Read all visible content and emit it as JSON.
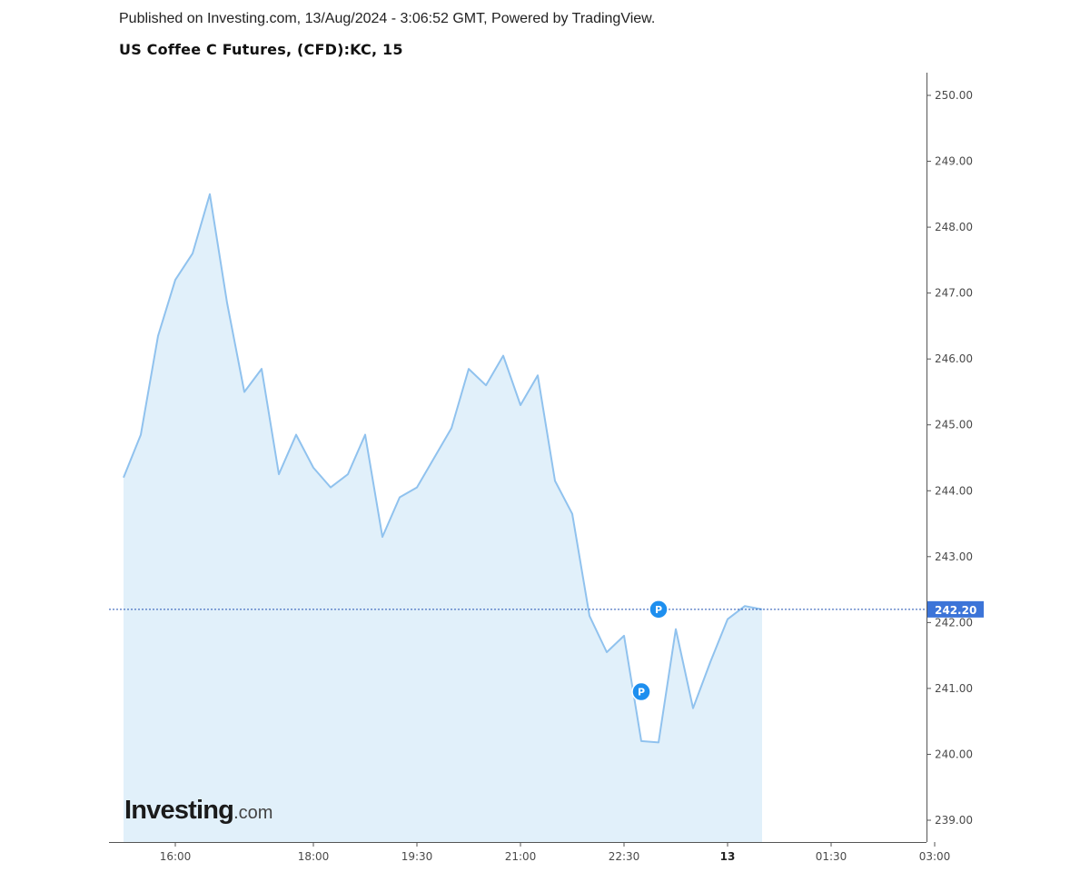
{
  "header": {
    "published": "Published on Investing.com, 13/Aug/2024 - 3:06:52 GMT, Powered by TradingView.",
    "title": "US Coffee C Futures, (CFD):KC, 15"
  },
  "logo": {
    "brand": "Investing",
    "domain": ".com"
  },
  "chart_data": {
    "type": "area",
    "title": "US Coffee C Futures, (CFD):KC, 15",
    "xlabel": "",
    "ylabel": "",
    "ylim": [
      238.7,
      250.35
    ],
    "y_ticks": [
      "250.00",
      "249.00",
      "248.00",
      "247.00",
      "246.00",
      "245.00",
      "244.00",
      "243.00",
      "242.00",
      "241.00",
      "240.00",
      "239.00"
    ],
    "x_tick_labels": [
      {
        "label": "16:00",
        "time": "12 Aug 16:00",
        "bold": false
      },
      {
        "label": "18:00",
        "time": "12 Aug 18:00",
        "bold": false
      },
      {
        "label": "19:30",
        "time": "12 Aug 19:30",
        "bold": false
      },
      {
        "label": "21:00",
        "time": "12 Aug 21:00",
        "bold": false
      },
      {
        "label": "22:30",
        "time": "12 Aug 22:30",
        "bold": false
      },
      {
        "label": "13",
        "time": "13 Aug 00:00",
        "bold": true
      },
      {
        "label": "01:30",
        "time": "13 Aug 01:30",
        "bold": false
      },
      {
        "label": "03:00",
        "time": "13 Aug 03:00",
        "bold": false
      }
    ],
    "series": [
      {
        "times": [
          "12 Aug 15:15",
          "12 Aug 15:30",
          "12 Aug 15:45",
          "12 Aug 16:00",
          "12 Aug 16:15",
          "12 Aug 16:30",
          "12 Aug 16:45",
          "12 Aug 17:00",
          "12 Aug 17:15",
          "12 Aug 17:30",
          "12 Aug 17:45",
          "12 Aug 18:00",
          "12 Aug 18:15",
          "12 Aug 18:30",
          "12 Aug 18:45",
          "12 Aug 19:00",
          "12 Aug 19:15",
          "12 Aug 19:30",
          "12 Aug 19:45",
          "12 Aug 20:00",
          "12 Aug 20:15",
          "12 Aug 20:30",
          "12 Aug 20:45",
          "12 Aug 21:00",
          "12 Aug 21:15",
          "12 Aug 21:30",
          "12 Aug 21:45",
          "12 Aug 22:00",
          "12 Aug 22:15",
          "12 Aug 22:30",
          "12 Aug 22:45",
          "12 Aug 23:00",
          "12 Aug 23:15",
          "12 Aug 23:30",
          "12 Aug 23:45",
          "13 Aug 00:00",
          "13 Aug 00:15",
          "13 Aug 00:30"
        ],
        "values": [
          244.2,
          244.85,
          246.35,
          247.2,
          247.6,
          248.5,
          246.85,
          245.5,
          245.85,
          244.25,
          244.85,
          244.35,
          244.05,
          244.25,
          244.85,
          243.3,
          243.9,
          244.05,
          244.5,
          244.95,
          245.85,
          245.6,
          246.05,
          245.3,
          245.75,
          244.15,
          243.65,
          242.1,
          241.55,
          241.8,
          240.2,
          240.18,
          241.9,
          240.7,
          241.4,
          242.05,
          242.25,
          242.2
        ]
      }
    ],
    "last_price": "242.20",
    "last_value": 242.2,
    "markers": [
      {
        "label": "P",
        "time": "12 Aug 22:45",
        "value": 240.95
      },
      {
        "label": "P",
        "time": "12 Aug 23:00",
        "value": 242.2
      }
    ],
    "colors": {
      "line": "#90c2ee",
      "fill": "#e1f0fa",
      "price_line": "#2353b3",
      "price_label_bg": "#3c74d8",
      "marker": "#1e8fef",
      "axis": "#555555"
    },
    "grid": false,
    "legend": "none"
  }
}
